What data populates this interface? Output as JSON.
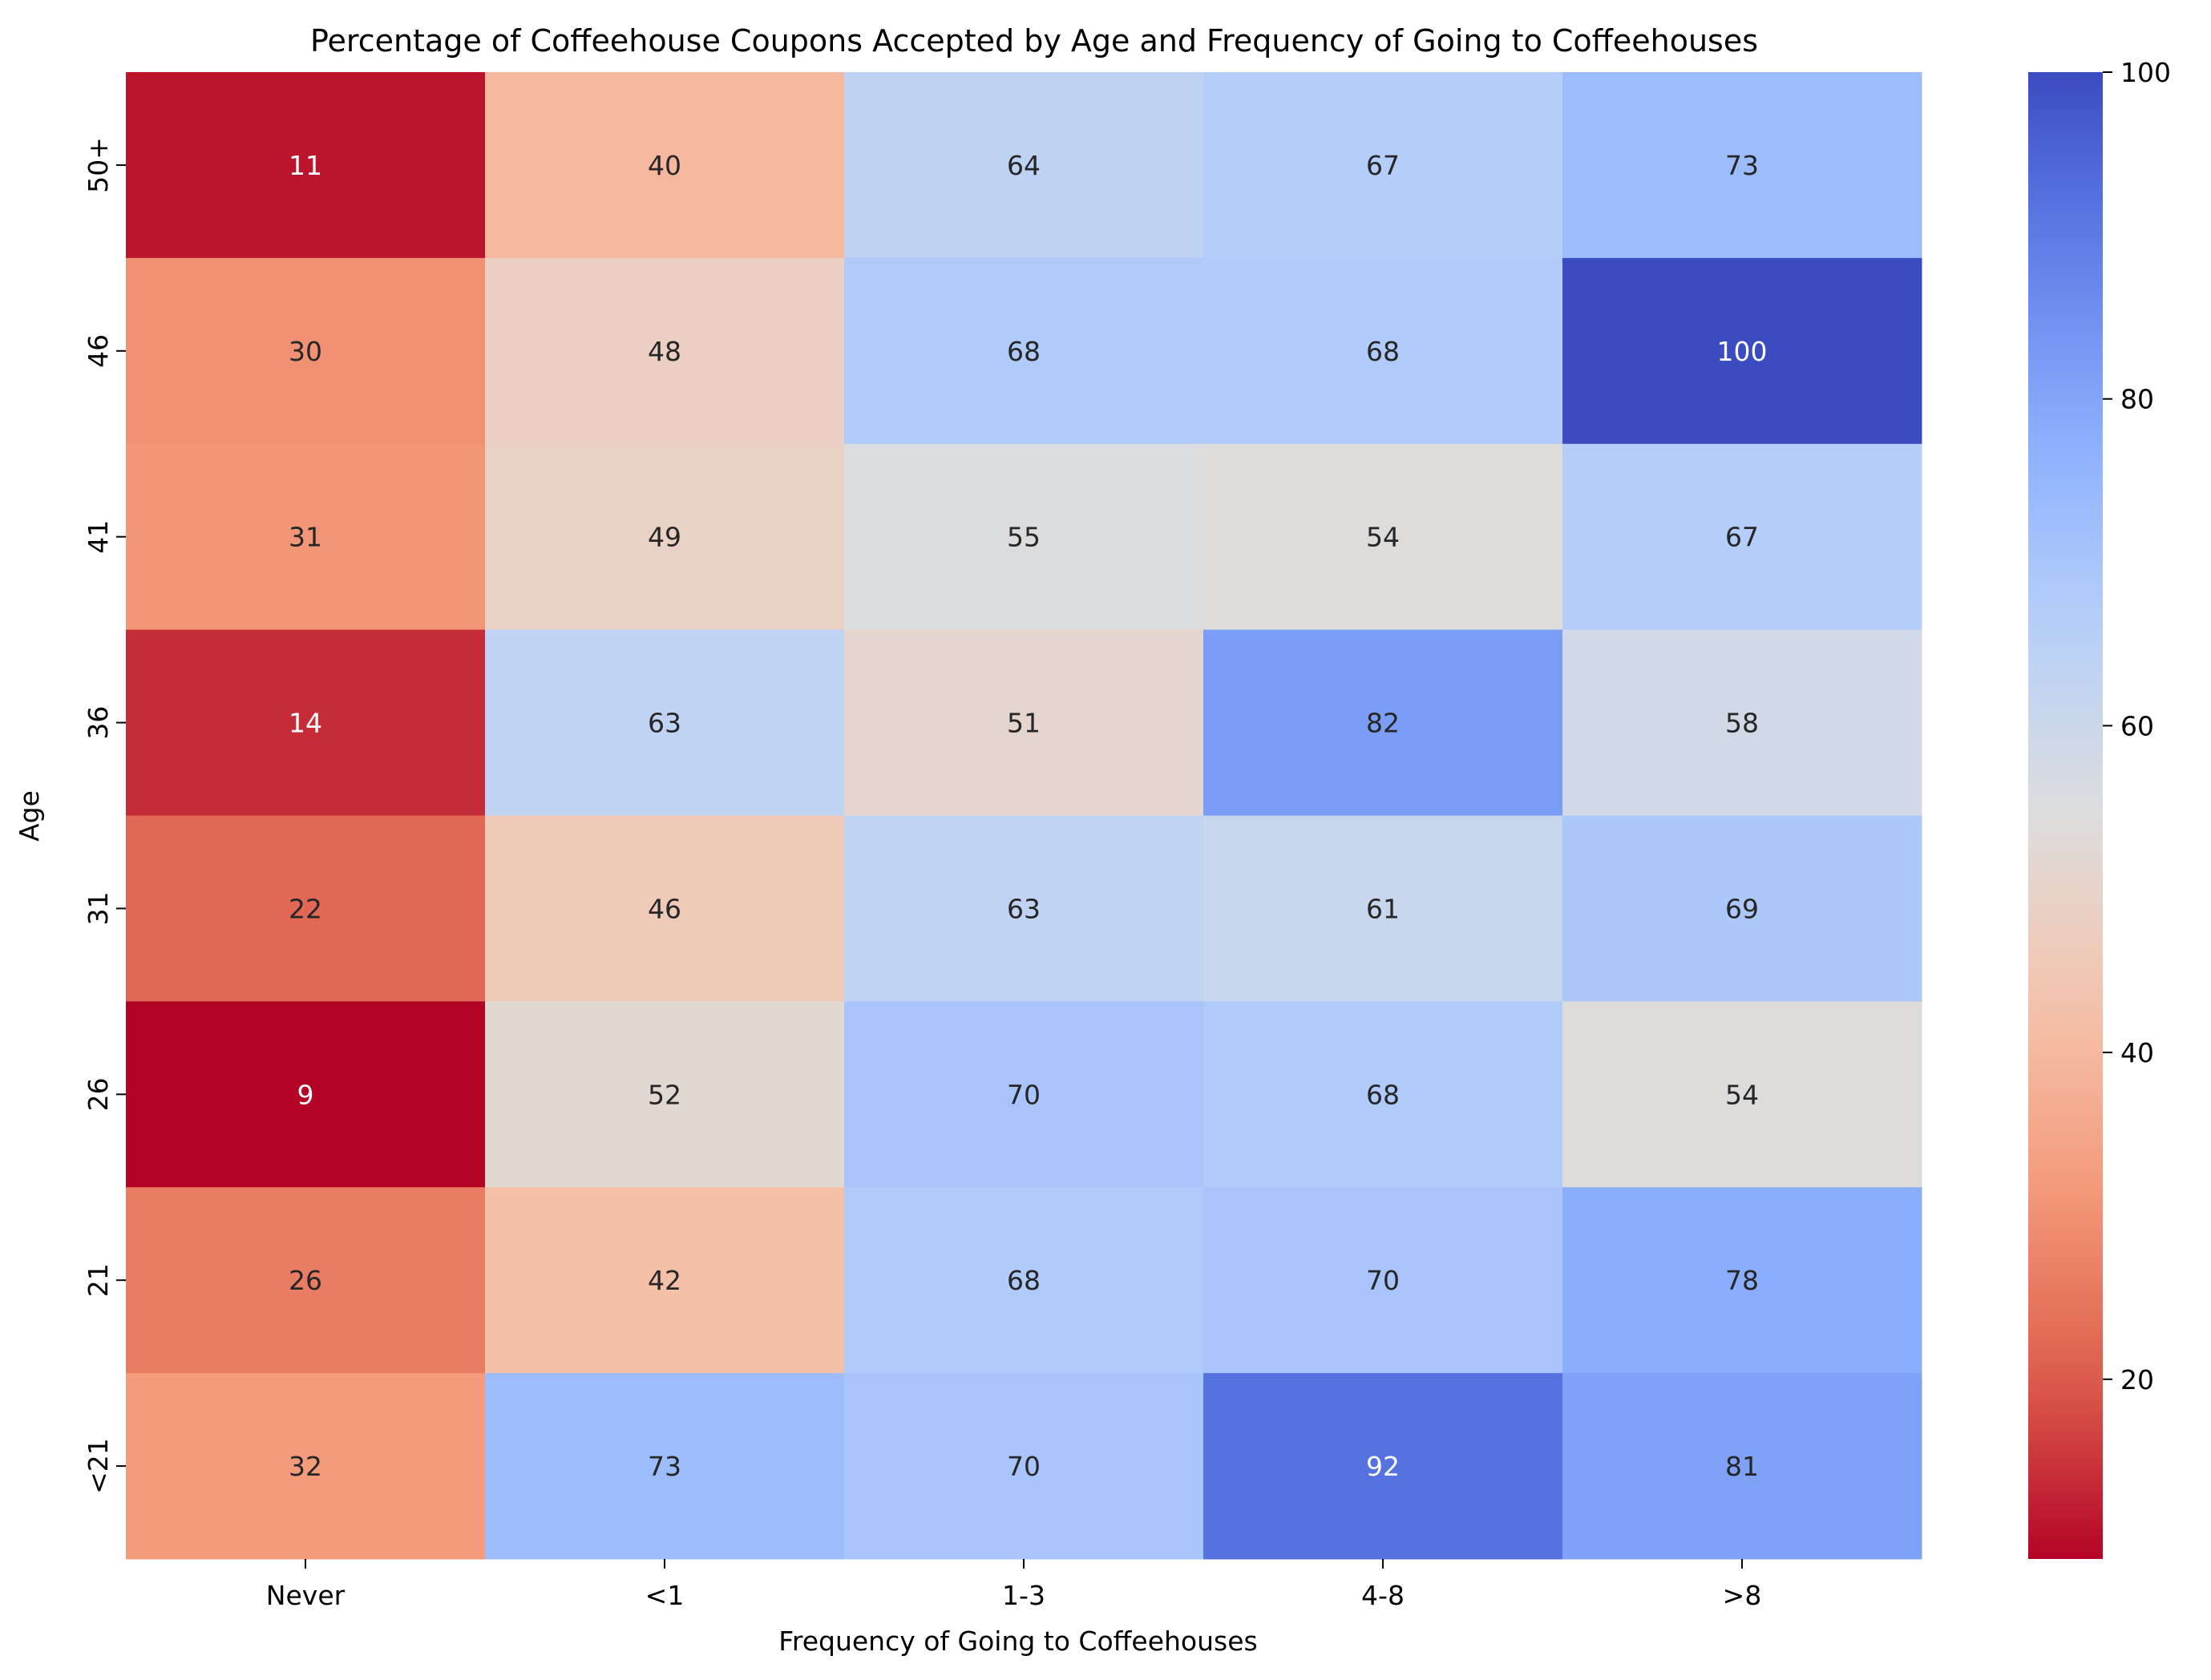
{
  "chart_data": {
    "type": "heatmap",
    "title": "Percentage of Coffeehouse Coupons Accepted by Age and Frequency of Going to Coffeehouses",
    "xlabel": "Frequency of Going to Coffeehouses",
    "ylabel": "Age",
    "x_categories": [
      "Never",
      "<1",
      "1-3",
      "4-8",
      ">8"
    ],
    "y_categories": [
      "50+",
      "46",
      "41",
      "36",
      "31",
      "26",
      "21",
      "<21"
    ],
    "values": [
      [
        11,
        40,
        64,
        67,
        73
      ],
      [
        30,
        48,
        68,
        68,
        100
      ],
      [
        31,
        49,
        55,
        54,
        67
      ],
      [
        14,
        63,
        51,
        82,
        58
      ],
      [
        22,
        46,
        63,
        61,
        69
      ],
      [
        9,
        52,
        70,
        68,
        54
      ],
      [
        26,
        42,
        68,
        70,
        78
      ],
      [
        32,
        73,
        70,
        92,
        81
      ]
    ],
    "colormap": "coolwarm_r",
    "color_range": [
      9,
      100
    ],
    "colorbar_ticks": [
      20,
      40,
      60,
      80,
      100
    ],
    "annotations": true
  }
}
